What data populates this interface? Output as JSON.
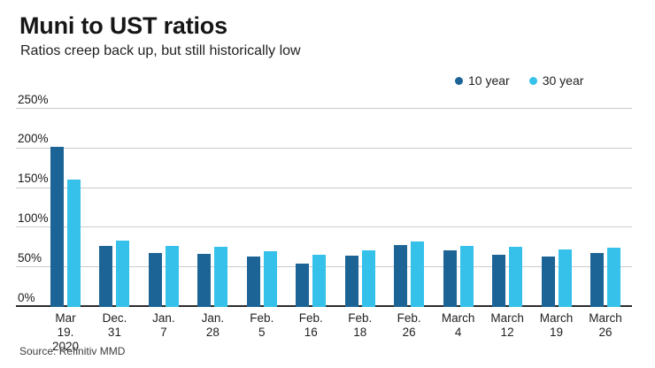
{
  "header": {
    "title": "Muni to UST ratios",
    "subtitle": "Ratios creep back up, but still historically low"
  },
  "legend": [
    {
      "label": "10 year",
      "color": "#1d6496"
    },
    {
      "label": "30 year",
      "color": "#35c1e9"
    }
  ],
  "source": "Source: Refinitiv MMD",
  "colors": {
    "ten_year": "#1d6496",
    "thirty_year": "#35c1e9",
    "gridline": "#cccccc",
    "axis": "#2b2b2b"
  },
  "chart_data": {
    "type": "bar",
    "title": "Muni to UST ratios",
    "subtitle": "Ratios creep back up, but still historically low",
    "categories": [
      "Mar 19.\n2020",
      "Dec. 31",
      "Jan. 7",
      "Jan. 28",
      "Feb. 5",
      "Feb. 16",
      "Feb. 18",
      "Feb. 26",
      "March 4",
      "March\n12",
      "March\n19",
      "March\n26"
    ],
    "series": [
      {
        "name": "10 year",
        "color": "#1d6496",
        "values": [
          202,
          77,
          68,
          67,
          64,
          55,
          65,
          78,
          72,
          66,
          64,
          68
        ]
      },
      {
        "name": "30 year",
        "color": "#35c1e9",
        "values": [
          161,
          84,
          77,
          76,
          70,
          66,
          72,
          83,
          77,
          76,
          73,
          75
        ]
      }
    ],
    "xlabel": "",
    "ylabel": "",
    "ylim": [
      0,
      250
    ],
    "yticks": [
      0,
      50,
      100,
      150,
      200,
      250
    ],
    "ytick_format": "{v}%",
    "grid": true,
    "legend_position": "top-right"
  }
}
